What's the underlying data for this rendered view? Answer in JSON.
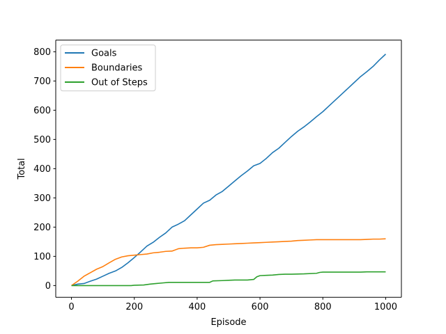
{
  "chart_data": {
    "type": "line",
    "title": "",
    "xlabel": "Episode",
    "ylabel": "Total",
    "xlim": [
      -50,
      1050
    ],
    "ylim": [
      -40,
      840
    ],
    "xticks": [
      0,
      200,
      400,
      600,
      800,
      1000
    ],
    "yticks": [
      0,
      100,
      200,
      300,
      400,
      500,
      600,
      700,
      800
    ],
    "grid": false,
    "legend_position": "upper-left",
    "series": [
      {
        "name": "Goals",
        "color": "#1f77b4",
        "points": [
          [
            0,
            0
          ],
          [
            20,
            5
          ],
          [
            40,
            7
          ],
          [
            60,
            15
          ],
          [
            80,
            22
          ],
          [
            100,
            32
          ],
          [
            120,
            42
          ],
          [
            140,
            50
          ],
          [
            160,
            62
          ],
          [
            180,
            78
          ],
          [
            200,
            96
          ],
          [
            220,
            115
          ],
          [
            240,
            135
          ],
          [
            260,
            148
          ],
          [
            280,
            165
          ],
          [
            300,
            180
          ],
          [
            320,
            200
          ],
          [
            340,
            210
          ],
          [
            360,
            222
          ],
          [
            380,
            242
          ],
          [
            400,
            262
          ],
          [
            420,
            282
          ],
          [
            440,
            292
          ],
          [
            460,
            310
          ],
          [
            480,
            322
          ],
          [
            500,
            340
          ],
          [
            520,
            358
          ],
          [
            540,
            376
          ],
          [
            560,
            392
          ],
          [
            580,
            410
          ],
          [
            600,
            418
          ],
          [
            620,
            435
          ],
          [
            640,
            455
          ],
          [
            660,
            470
          ],
          [
            680,
            490
          ],
          [
            700,
            510
          ],
          [
            720,
            528
          ],
          [
            740,
            543
          ],
          [
            760,
            560
          ],
          [
            780,
            578
          ],
          [
            800,
            595
          ],
          [
            820,
            615
          ],
          [
            840,
            635
          ],
          [
            860,
            655
          ],
          [
            880,
            675
          ],
          [
            900,
            695
          ],
          [
            920,
            715
          ],
          [
            940,
            732
          ],
          [
            960,
            750
          ],
          [
            980,
            772
          ],
          [
            1000,
            792
          ]
        ]
      },
      {
        "name": "Boundaries",
        "color": "#ff7f0e",
        "points": [
          [
            0,
            0
          ],
          [
            20,
            15
          ],
          [
            40,
            32
          ],
          [
            60,
            44
          ],
          [
            80,
            56
          ],
          [
            100,
            65
          ],
          [
            120,
            78
          ],
          [
            140,
            90
          ],
          [
            160,
            98
          ],
          [
            180,
            102
          ],
          [
            200,
            104
          ],
          [
            220,
            106
          ],
          [
            240,
            108
          ],
          [
            260,
            112
          ],
          [
            280,
            114
          ],
          [
            300,
            117
          ],
          [
            320,
            118
          ],
          [
            340,
            126
          ],
          [
            360,
            128
          ],
          [
            380,
            129
          ],
          [
            400,
            129
          ],
          [
            420,
            131
          ],
          [
            440,
            138
          ],
          [
            460,
            140
          ],
          [
            480,
            141
          ],
          [
            500,
            142
          ],
          [
            520,
            143
          ],
          [
            540,
            144
          ],
          [
            560,
            145
          ],
          [
            580,
            146
          ],
          [
            600,
            147
          ],
          [
            620,
            148
          ],
          [
            640,
            149
          ],
          [
            660,
            150
          ],
          [
            680,
            151
          ],
          [
            700,
            152
          ],
          [
            720,
            154
          ],
          [
            740,
            155
          ],
          [
            760,
            156
          ],
          [
            780,
            157
          ],
          [
            800,
            157
          ],
          [
            820,
            157
          ],
          [
            840,
            157
          ],
          [
            860,
            157
          ],
          [
            880,
            157
          ],
          [
            900,
            157
          ],
          [
            920,
            157
          ],
          [
            940,
            158
          ],
          [
            960,
            159
          ],
          [
            980,
            159
          ],
          [
            1000,
            160
          ]
        ]
      },
      {
        "name": "Out of Steps",
        "color": "#2ca02c",
        "points": [
          [
            0,
            0
          ],
          [
            50,
            0
          ],
          [
            100,
            0
          ],
          [
            150,
            0
          ],
          [
            190,
            0
          ],
          [
            200,
            1
          ],
          [
            230,
            2
          ],
          [
            250,
            5
          ],
          [
            270,
            7
          ],
          [
            290,
            9
          ],
          [
            310,
            11
          ],
          [
            330,
            11
          ],
          [
            360,
            11
          ],
          [
            400,
            11
          ],
          [
            440,
            11
          ],
          [
            450,
            16
          ],
          [
            480,
            17
          ],
          [
            500,
            18
          ],
          [
            520,
            19
          ],
          [
            540,
            19
          ],
          [
            560,
            19
          ],
          [
            580,
            21
          ],
          [
            590,
            30
          ],
          [
            600,
            34
          ],
          [
            620,
            35
          ],
          [
            640,
            36
          ],
          [
            660,
            38
          ],
          [
            680,
            39
          ],
          [
            700,
            39
          ],
          [
            740,
            40
          ],
          [
            780,
            42
          ],
          [
            790,
            45
          ],
          [
            800,
            46
          ],
          [
            840,
            46
          ],
          [
            880,
            46
          ],
          [
            920,
            46
          ],
          [
            940,
            47
          ],
          [
            970,
            47
          ],
          [
            1000,
            47
          ]
        ]
      }
    ]
  }
}
